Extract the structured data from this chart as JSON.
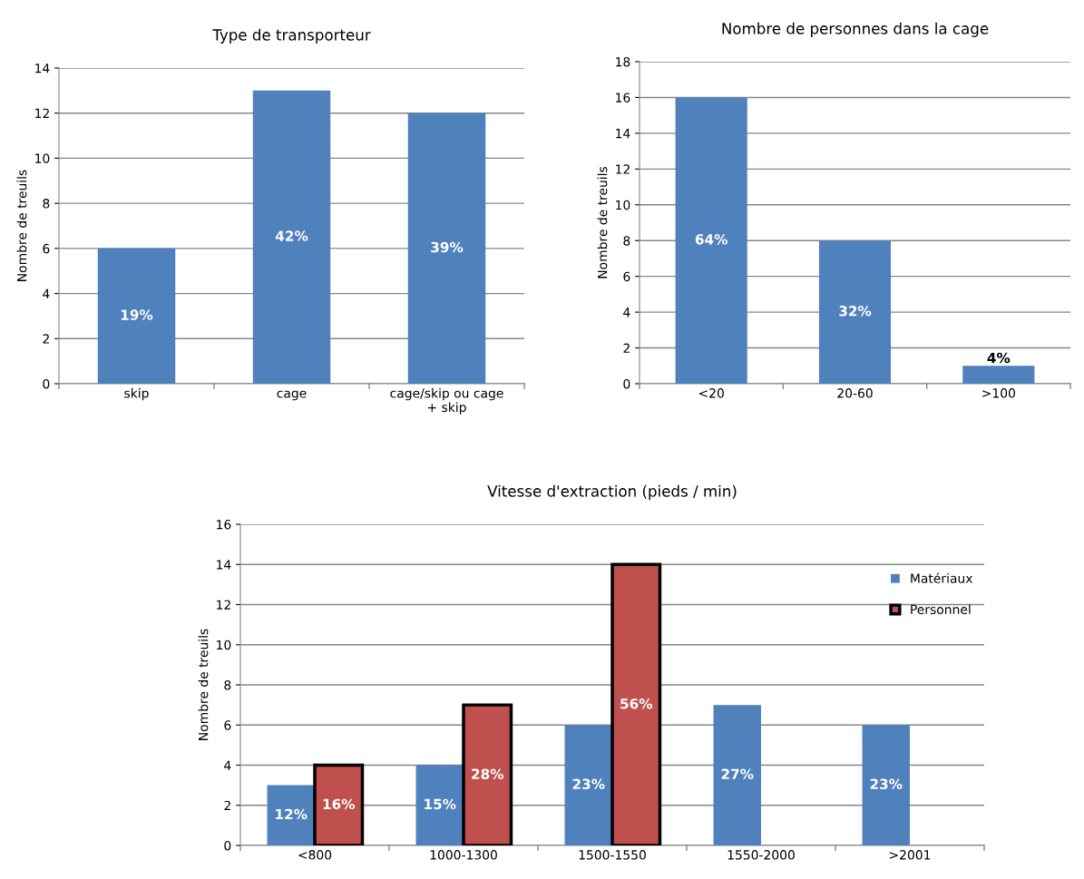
{
  "chart_data": [
    {
      "type": "bar",
      "title": "Type de transporteur",
      "ylabel": "Nombre de treuils",
      "categories": [
        "skip",
        "cage",
        "cage/skip ou cage\n+ skip"
      ],
      "series": [
        {
          "color": "#4f81bd",
          "values": [
            6,
            13,
            12
          ]
        }
      ],
      "annotations": [
        "19%",
        "42%",
        "39%"
      ],
      "ylim": [
        0,
        14
      ],
      "yticks": [
        0,
        2,
        4,
        6,
        8,
        10,
        12,
        14
      ],
      "grid": "y",
      "legend": false
    },
    {
      "type": "bar",
      "title": "Nombre de personnes dans la cage",
      "ylabel": "Nombre de treuils",
      "categories": [
        "<20",
        "20-60",
        ">100"
      ],
      "series": [
        {
          "color": "#4f81bd",
          "values": [
            16,
            8,
            1
          ]
        }
      ],
      "annotations": [
        "64%",
        "32%",
        "4%"
      ],
      "ylim": [
        0,
        18
      ],
      "yticks": [
        0,
        2,
        4,
        6,
        8,
        10,
        12,
        14,
        16,
        18
      ],
      "grid": "y",
      "legend": false
    },
    {
      "type": "bar",
      "title": "Vitesse d'extraction (pieds / min)",
      "ylabel": "Nombre de treuils",
      "categories": [
        "<800",
        "1000-1300",
        "1500-1550",
        "1550-2000",
        ">2001"
      ],
      "series": [
        {
          "name": "Matériaux",
          "color": "#4f81bd",
          "values": [
            3,
            4,
            6,
            7,
            6
          ]
        },
        {
          "name": "Personnel",
          "color": "#c0504d",
          "values": [
            4,
            7,
            14,
            null,
            null
          ]
        }
      ],
      "annotations": [
        "12%",
        "15%",
        "23%",
        "27%",
        "23%",
        "16%",
        "28%",
        "56%"
      ],
      "ylim": [
        0,
        16
      ],
      "yticks": [
        0,
        2,
        4,
        6,
        8,
        10,
        12,
        14,
        16
      ],
      "grid": "y",
      "legend": "right"
    }
  ]
}
